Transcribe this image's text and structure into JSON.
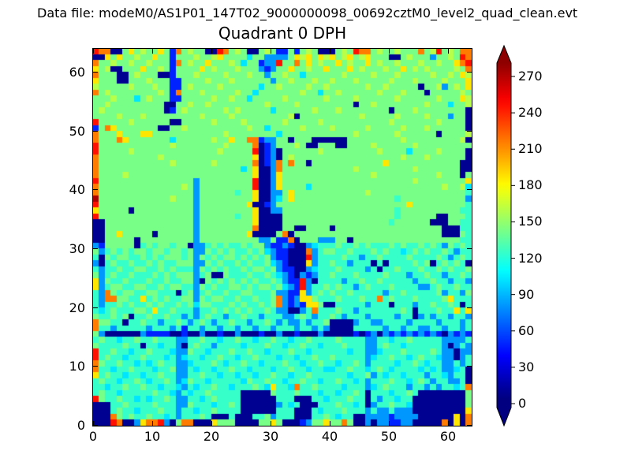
{
  "header": {
    "label": "Data file: modeM0/AS1P01_147T02_9000000098_00692cztM0_level2_quad_clean.evt"
  },
  "chart_data": {
    "type": "heatmap",
    "title": "Quadrant 0 DPH",
    "xlabel": "",
    "ylabel": "",
    "x_range": [
      0,
      64
    ],
    "y_range": [
      0,
      64
    ],
    "x_ticks": [
      0,
      10,
      20,
      30,
      40,
      50,
      60
    ],
    "y_ticks": [
      0,
      10,
      20,
      30,
      40,
      50,
      60
    ],
    "grid_on": false,
    "colormap": "jet",
    "background_color": "#ffffff",
    "frame_color": "#000000",
    "colorbar": {
      "position": "right",
      "extend": "both",
      "vmin": 0,
      "vmax": 285,
      "ticks": [
        0,
        30,
        60,
        90,
        120,
        150,
        180,
        210,
        240,
        270
      ]
    },
    "value_key": {
      "N": 5,
      "B": 45,
      "b": 78,
      "c": 100,
      ".": 122,
      "g": 140,
      "G": 158,
      "y": 185,
      "o": 215,
      "r": 245,
      "R": 272
    },
    "grid_rows_top_to_bottom": [
      "rooNNgygGggygBogGggNNrogGgNNgGgBBgBgGgNNNgGgroogGggGgggogGrgGgoo",
      "NNygyggGggyggBgggGggGyggggcggbbbbgyGygyGygGygGygggNNgGgggbggGgro",
      "oggGggGggGgggBogGggygggGgcggBbbrggogygGggygGggygGggGgggGggGggyor",
      "ygGNNgggyggGgBggggygGgggGgggbBbggyggGggygggygGgggGggygGgGggggGgo",
      "ogggNNgGgggNNBgggGggggGgggGggbggGggcggggggGggggGgggGgggggGggGgyG",
      "ygggNNgggGgggBBggggGgggGggggggbggGgggGggGgggGgggggGgggGggggGgggy",
      "GgggggGgggGggBBgGggggGggggggcggGggggGggGggggggGggGgggggNggGbgGgy",
      "ogGggggggggGgBogggGgggggGggcgggggggGggcggGggggggGgggGgggNgggggGg",
      "gggGgggcgGgggBBgggggGggGggcgggggGggggggGggggGggggggGggggggGgggyG",
      "ggGgggggggggNNggGggGgggggggggGggggGgggggggggNggGggggggggGgggcggG",
      "gGggggggggggNBgGggggggGgGgggggcggggggGgggGggggggggNgggGggggggggN",
      "ggggGgggGgggggggggGggggGgggggggggGNggggggggggGgggggGggggGgggbggN",
      "rgggggGggggggNNgggggGggggGggggggGgggggGgggggggggggGgggggggGggggN",
      "BgoygggggggNNggGggggggggggGggcgggggGggggGgggggGgggggGgggGggggggN",
      "ogggygggyyggggggggggggGggggggggcggggggggggggGggggggGggggggNggggG",
      "ogggoygggggggcggggggGggyggooBbbggNgggNNNNNNgggggggggGgggggggggGN",
      "rggggggggggggGggggggggGggggoNBbgggGgNNgggNNggggGggggggGggggggggg",
      "rgggggGggggggggggggggGgggggrNBbNggggggGgggggggggGggggcggggGggggN",
      "oggggggggggGgggggggggggggggyNBbNgGggggggggggggggggggGgggGggggggN",
      "oggggggggggggGggggggGggggggoNBbogoggNggggggggggggyggggggggggggNN",
      "oggggggggggggggggggggggggcgyNNboggggggggggggGgggggggggGgggggggNN",
      "oggggGgggggggggggggggggggggyNNbygggggggggggggggGggggggggggGgggNg",
      "rggggggggggggggggbgggggggggrNNbyggggggggggggggggggggggGggggggggy",
      "oggggggggggggggGgbgggggggggrNNbyggggcggggggggggggggggggggggGggGc",
      "ogggggggggggggggg bgggggg.ggyNNbbgyggggggggggggGgggggggggggggggg",
      "RggggggggggggGgggbgggggggggyNNbcgyggggggggggggggggg.ggggggggggg b",
      "rgggggggggggggggg bggggggggyNNBbggggggggggggggggggggggyggggggggg",
      "ygggggNggggggggggbggggggggg yNNbbggggggggggggggggggg.gggggggggg.",
      "rggggggggggggggggbgggggg.ggyNNNNggggggggggggggggggg.ggggggNNggg.",
      "NNgggggggggggggggbggggggggg yNNNNgggggggggggggggggg.ggggggNNNgg.",
      "NNgggggggggggggggbggggggggg oNNNNggNNggggNggggggggggggggggggNNN.",
      "NNggyggggg NggggggbggggggggyNNNNgoNgggggggggggggggggggggggggNNNg",
      "NNgggggNggggggggg bggggggggggbbgBBoNgggbbbggNggggggggggggggggg g.",
      "bBgggggN.g.gg.ggNbb.g.g..g.ggbBBbBNNbc...g..g.g...g.g..g.g.bg.g.",
      "gb.g.g.gg.gg.gg.gbbg.g.g..g.gcbBBNNNob.gg..g...g.g..c.g.g..g.b..",
      ".Ng.gg..g.g.ggg.gbg.g.gg.g.g.gbBBNNNrb....g..b..g....g....g.b.g.",
      "bN.g..g..g.g..gggbbg.g..g.g..gcbBNNNyb..g..b...N.N....g.gN.g.g.N",
      ".b..g..gg..g.g...bg.g.g..g.gg.gbBBNNbc...g....b.N..g...g..g.g..g",
      "gb.g..g...g.g.gggb.gNNg...g..g.cbBNbBb..g...g....g...b..g..b..g.",
      "ybg..g...g..g..ggbNg.g.g.g.g..g.bBBrbN....b..g..g.....b..g..b..b",
      "yb.gg..gg..g.gg..bg.g..gg.g.gg.gcbBrb..g.g..b.g...g....bb.g..g..",
      ".bog.gg..gg...N.gb.g..g..gg...gbbBByb.g.g..g.....b..g.....gb..bg",
      ".boogg..y.g.g..ggbg.gg..g..g..gobBbyyg...g...g..o.g...g....gy...",
      ".b..g.g..g.g..g.gcgg...g.g..g.gobBbByygNN.....b...N...b..g..g.N.",
      ".c.g...gg.y..g...b..g.g.g.g..g.bbNNb.o...g..b.......g.N...g..y.y",
      "g..g.gN..g..g..b.b.g..b..g..b...bb.g.b..g.b...b....b..Nb.b..b..b",
      "ogg..N..g..b..g.b.g.b..g..b..g.b.bb.b..gNNNNb..bb....b....b...b.",
      "o..b.....b...b.B..b..b..b..b..b...b..b.bNNNN.....b..b..bb..b..b.",
      "gbNNNNNNbBBBBNNBNNbNNBNNbNNNBNNbNNBNNNbNNNNNBNBbNbBbBbBbBbBNbBbB",
      ".g..c..g..g...bb..g..c..g..c..g..c..g....g....bb..c..g.....bbbb.",
      "g....g..N..c..bN.g..b....c...g..c..g..c...g...bb.g..c......bNb.b",
      "r..g..c..g...cbbg..c...g..g..c...g..c......c..bbc...g....g.bbNbb",
      "r.g..c..g...c.bc..c..g..c..g...c..c..g..g.....bc..g..c.g..cbbNb.",
      "og..g..c.c.g..bbc...g.c..g..c...g..c..g..c..g.b....c..g.c..bb.b.",
      "o..c..g...c..gbb.c..c..g..c...c..g..c..cc..g..c.g.c....c.c.bbc.N",
      "y.g..c..c..g..bb..g..c..c..c..g..c..g......c..gb.c..c...b..cb..N",
      ".g..c..g.c..g.bcg..c.....cg..g..c..g..c..g..c.b...g..c.g.b..bb.N",
      "..c..g..g..c..cb.c..g..c...g.cy..co..g....c...bc.g...b..b.b..c.o",
      ".g..c.....g..cb.c..g.....NNNNNg...g...c..c..g.N...c..g.NNNNNNNNg",
      "rg..g..c.c..g.bb..c.g....NNNNNN...NNN..c...g..N.b..c..NNNNNNNNNg",
      "NNN..g....g...bbg...c..g.NNNNNNb.c.NNN...g..c.Nb..g..cNNNNNNNNNg",
      "NNN.g..c...g..b..c..g....NNNNNN...NNN.c...g...b.bb.bbbNNNNNNNNNy",
      "NNNog.g..g..c.b...g.NNN.NNN..gb...NNN..g.c..NNbbbbBbbbbNNNNNNyNo",
      "NNNroNNbyoorbNgooNNNygggNNNNggygNNNBbggyggogNNbNbbBBbbNNNNNoNyNo"
    ]
  }
}
